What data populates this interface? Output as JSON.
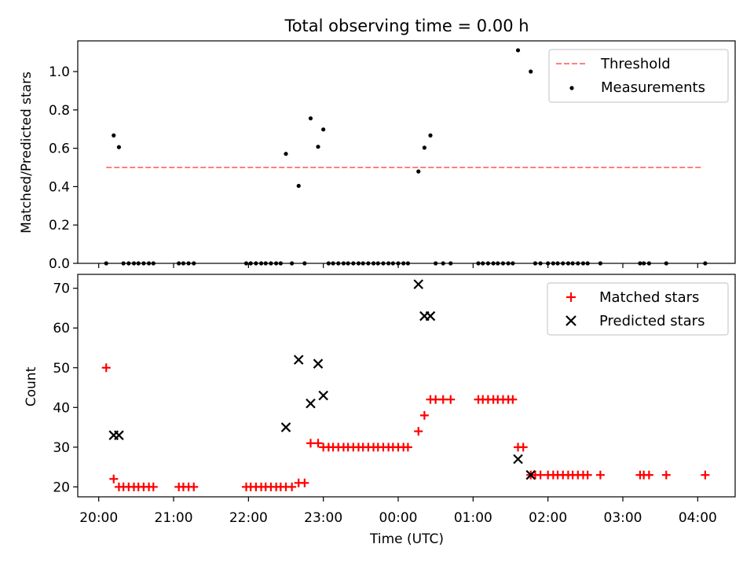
{
  "chart_data": [
    {
      "type": "scatter",
      "title": "Total observing time = 0.00 h",
      "ylabel": "Matched/Predicted stars",
      "xlabel": "",
      "ylim": [
        0,
        1.16
      ],
      "yticks": [
        0.0,
        0.2,
        0.4,
        0.6,
        0.8,
        1.0
      ],
      "ytick_labels": [
        "0.0",
        "0.2",
        "0.4",
        "0.6",
        "0.8",
        "1.0"
      ],
      "legend_position": "top-right",
      "threshold": {
        "name": "Threshold",
        "value": 0.5,
        "x_start": 20.1,
        "x_end": 28.05,
        "color": "#ff7f7f",
        "style": "dashed"
      },
      "series": [
        {
          "name": "Measurements",
          "color": "#000000",
          "marker": "dot",
          "x": [
            20.1,
            20.2,
            20.27,
            20.33,
            20.4,
            20.47,
            20.53,
            20.6,
            20.67,
            20.73,
            21.07,
            21.13,
            21.2,
            21.27,
            21.97,
            22.03,
            22.1,
            22.17,
            22.23,
            22.3,
            22.37,
            22.43,
            22.5,
            22.58,
            22.67,
            22.75,
            22.83,
            22.93,
            23.0,
            23.07,
            23.13,
            23.2,
            23.27,
            23.33,
            23.4,
            23.47,
            23.53,
            23.6,
            23.67,
            23.73,
            23.8,
            23.87,
            23.93,
            24.0,
            24.07,
            24.13,
            24.27,
            24.35,
            24.43,
            24.5,
            24.6,
            24.7,
            25.07,
            25.13,
            25.2,
            25.27,
            25.33,
            25.4,
            25.47,
            25.53,
            25.6,
            25.77,
            25.83,
            25.9,
            26.0,
            26.07,
            26.13,
            26.2,
            26.27,
            26.33,
            26.4,
            26.47,
            26.53,
            26.7,
            27.23,
            27.28,
            27.35,
            27.58,
            28.1
          ],
          "y": [
            0.0,
            0.667,
            0.606,
            0.0,
            0.0,
            0.0,
            0.0,
            0.0,
            0.0,
            0.0,
            0.0,
            0.0,
            0.0,
            0.0,
            0.0,
            0.0,
            0.0,
            0.0,
            0.0,
            0.0,
            0.0,
            0.0,
            0.571,
            0.0,
            0.404,
            0.0,
            0.756,
            0.608,
            0.698,
            0.0,
            0.0,
            0.0,
            0.0,
            0.0,
            0.0,
            0.0,
            0.0,
            0.0,
            0.0,
            0.0,
            0.0,
            0.0,
            0.0,
            0.0,
            0.0,
            0.0,
            0.479,
            0.603,
            0.667,
            0.0,
            0.0,
            0.0,
            0.0,
            0.0,
            0.0,
            0.0,
            0.0,
            0.0,
            0.0,
            0.0,
            1.111,
            1.0,
            0.0,
            0.0,
            0.0,
            0.0,
            0.0,
            0.0,
            0.0,
            0.0,
            0.0,
            0.0,
            0.0,
            0.0,
            0.0,
            0.0,
            0.0,
            0.0,
            0.0
          ]
        }
      ]
    },
    {
      "type": "scatter",
      "title": "",
      "ylabel": "Count",
      "xlabel": "Time (UTC)",
      "ylim": [
        17.5,
        73.5
      ],
      "yticks": [
        20,
        30,
        40,
        50,
        60,
        70
      ],
      "ytick_labels": [
        "20",
        "30",
        "40",
        "50",
        "60",
        "70"
      ],
      "xlim": [
        19.72,
        28.5
      ],
      "xticks": [
        20,
        21,
        22,
        23,
        24,
        25,
        26,
        27,
        28
      ],
      "xtick_labels": [
        "20:00",
        "21:00",
        "22:00",
        "23:00",
        "00:00",
        "01:00",
        "02:00",
        "03:00",
        "04:00"
      ],
      "legend_position": "top-right",
      "series": [
        {
          "name": "Matched stars",
          "color": "#ff0000",
          "marker": "plus",
          "x": [
            20.1,
            20.2,
            20.27,
            20.33,
            20.4,
            20.47,
            20.53,
            20.6,
            20.67,
            20.73,
            21.07,
            21.13,
            21.2,
            21.27,
            21.97,
            22.03,
            22.1,
            22.17,
            22.23,
            22.3,
            22.37,
            22.43,
            22.5,
            22.58,
            22.67,
            22.75,
            22.83,
            22.93,
            23.0,
            23.07,
            23.13,
            23.2,
            23.27,
            23.33,
            23.4,
            23.47,
            23.53,
            23.6,
            23.67,
            23.73,
            23.8,
            23.87,
            23.93,
            24.0,
            24.07,
            24.13,
            24.27,
            24.35,
            24.43,
            24.5,
            24.6,
            24.7,
            25.07,
            25.13,
            25.2,
            25.27,
            25.33,
            25.4,
            25.47,
            25.53,
            25.6,
            25.67,
            25.77,
            25.83,
            25.9,
            26.0,
            26.07,
            26.13,
            26.2,
            26.27,
            26.33,
            26.4,
            26.47,
            26.53,
            26.7,
            27.23,
            27.28,
            27.35,
            27.58,
            28.1
          ],
          "y": [
            50,
            22,
            20,
            20,
            20,
            20,
            20,
            20,
            20,
            20,
            20,
            20,
            20,
            20,
            20,
            20,
            20,
            20,
            20,
            20,
            20,
            20,
            20,
            20,
            21,
            21,
            31,
            31,
            30,
            30,
            30,
            30,
            30,
            30,
            30,
            30,
            30,
            30,
            30,
            30,
            30,
            30,
            30,
            30,
            30,
            30,
            34,
            38,
            42,
            42,
            42,
            42,
            42,
            42,
            42,
            42,
            42,
            42,
            42,
            42,
            30,
            30,
            23,
            23,
            23,
            23,
            23,
            23,
            23,
            23,
            23,
            23,
            23,
            23,
            23,
            23,
            23,
            23,
            23,
            23
          ]
        },
        {
          "name": "Predicted stars",
          "color": "#000000",
          "marker": "x",
          "x": [
            20.2,
            20.27,
            22.5,
            22.67,
            22.83,
            22.93,
            23.0,
            24.27,
            24.35,
            24.43,
            25.6,
            25.77
          ],
          "y": [
            33,
            33,
            35,
            52,
            41,
            51,
            43,
            71,
            63,
            63,
            27,
            23
          ]
        }
      ]
    }
  ]
}
